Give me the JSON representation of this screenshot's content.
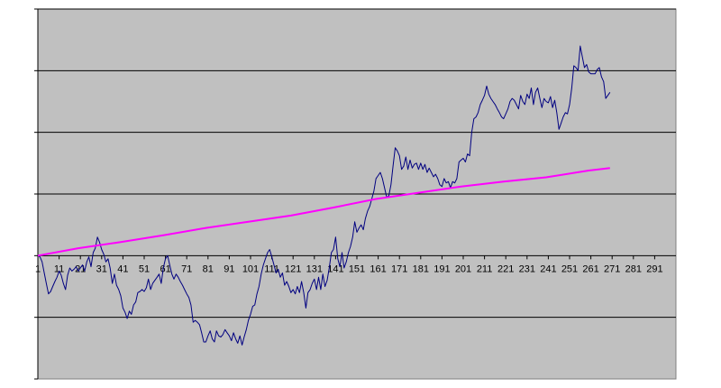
{
  "chart_data": {
    "type": "line",
    "title": "",
    "xlabel": "",
    "ylabel": "",
    "x_tick_labels": [
      "1",
      "11",
      "21",
      "31",
      "41",
      "51",
      "61",
      "71",
      "81",
      "91",
      "101",
      "111",
      "121",
      "131",
      "141",
      "151",
      "161",
      "171",
      "181",
      "191",
      "201",
      "211",
      "221",
      "231",
      "241",
      "251",
      "261",
      "271",
      "281",
      "291"
    ],
    "xlim": [
      1,
      301
    ],
    "ylim": [
      -2,
      4
    ],
    "y_gridlines": [
      -1,
      1,
      2,
      3,
      4
    ],
    "y_tick_labels_visible": false,
    "grid": true,
    "legend": "none",
    "plot_background": "#c0c0c0",
    "series": [
      {
        "color": "#000080",
        "points": [
          [
            1,
            0.0
          ],
          [
            2,
            -0.02
          ],
          [
            3,
            -0.1
          ],
          [
            4,
            -0.28
          ],
          [
            5,
            -0.45
          ],
          [
            6,
            -0.62
          ],
          [
            7,
            -0.58
          ],
          [
            8,
            -0.5
          ],
          [
            9,
            -0.42
          ],
          [
            10,
            -0.35
          ],
          [
            11,
            -0.25
          ],
          [
            12,
            -0.32
          ],
          [
            13,
            -0.45
          ],
          [
            14,
            -0.55
          ],
          [
            15,
            -0.32
          ],
          [
            16,
            -0.2
          ],
          [
            17,
            -0.25
          ],
          [
            18,
            -0.22
          ],
          [
            19,
            -0.18
          ],
          [
            20,
            -0.25
          ],
          [
            21,
            -0.2
          ],
          [
            22,
            -0.15
          ],
          [
            23,
            -0.25
          ],
          [
            24,
            -0.1
          ],
          [
            25,
            -0.02
          ],
          [
            26,
            -0.18
          ],
          [
            27,
            0.05
          ],
          [
            28,
            0.12
          ],
          [
            29,
            0.3
          ],
          [
            30,
            0.22
          ],
          [
            31,
            0.1
          ],
          [
            32,
            0.02
          ],
          [
            33,
            -0.1
          ],
          [
            34,
            -0.05
          ],
          [
            35,
            -0.2
          ],
          [
            36,
            -0.45
          ],
          [
            37,
            -0.3
          ],
          [
            38,
            -0.48
          ],
          [
            39,
            -0.55
          ],
          [
            40,
            -0.65
          ],
          [
            41,
            -0.85
          ],
          [
            42,
            -0.92
          ],
          [
            43,
            -1.02
          ],
          [
            44,
            -0.9
          ],
          [
            45,
            -0.95
          ],
          [
            46,
            -0.8
          ],
          [
            47,
            -0.75
          ],
          [
            48,
            -0.6
          ],
          [
            49,
            -0.58
          ],
          [
            50,
            -0.55
          ],
          [
            51,
            -0.58
          ],
          [
            52,
            -0.52
          ],
          [
            53,
            -0.38
          ],
          [
            54,
            -0.55
          ],
          [
            55,
            -0.45
          ],
          [
            56,
            -0.4
          ],
          [
            57,
            -0.35
          ],
          [
            58,
            -0.3
          ],
          [
            59,
            -0.45
          ],
          [
            60,
            -0.2
          ],
          [
            61,
            -0.05
          ],
          [
            62,
            0.0
          ],
          [
            63,
            -0.15
          ],
          [
            64,
            -0.3
          ],
          [
            65,
            -0.38
          ],
          [
            66,
            -0.3
          ],
          [
            67,
            -0.35
          ],
          [
            68,
            -0.42
          ],
          [
            69,
            -0.48
          ],
          [
            70,
            -0.55
          ],
          [
            71,
            -0.62
          ],
          [
            72,
            -0.68
          ],
          [
            73,
            -0.8
          ],
          [
            74,
            -1.08
          ],
          [
            75,
            -1.05
          ],
          [
            76,
            -1.08
          ],
          [
            77,
            -1.12
          ],
          [
            78,
            -1.25
          ],
          [
            79,
            -1.4
          ],
          [
            80,
            -1.4
          ],
          [
            81,
            -1.3
          ],
          [
            82,
            -1.22
          ],
          [
            83,
            -1.35
          ],
          [
            84,
            -1.4
          ],
          [
            85,
            -1.22
          ],
          [
            86,
            -1.3
          ],
          [
            87,
            -1.32
          ],
          [
            88,
            -1.28
          ],
          [
            89,
            -1.2
          ],
          [
            90,
            -1.25
          ],
          [
            91,
            -1.3
          ],
          [
            92,
            -1.38
          ],
          [
            93,
            -1.25
          ],
          [
            94,
            -1.35
          ],
          [
            95,
            -1.42
          ],
          [
            96,
            -1.3
          ],
          [
            97,
            -1.45
          ],
          [
            98,
            -1.32
          ],
          [
            99,
            -1.2
          ],
          [
            100,
            -1.05
          ],
          [
            101,
            -0.95
          ],
          [
            102,
            -0.82
          ],
          [
            103,
            -0.8
          ],
          [
            104,
            -0.62
          ],
          [
            105,
            -0.5
          ],
          [
            106,
            -0.3
          ],
          [
            107,
            -0.15
          ],
          [
            108,
            -0.05
          ],
          [
            109,
            0.05
          ],
          [
            110,
            0.1
          ],
          [
            111,
            -0.02
          ],
          [
            112,
            -0.15
          ],
          [
            113,
            -0.28
          ],
          [
            114,
            -0.22
          ],
          [
            115,
            -0.35
          ],
          [
            116,
            -0.28
          ],
          [
            117,
            -0.48
          ],
          [
            118,
            -0.42
          ],
          [
            119,
            -0.5
          ],
          [
            120,
            -0.6
          ],
          [
            121,
            -0.55
          ],
          [
            122,
            -0.62
          ],
          [
            123,
            -0.5
          ],
          [
            124,
            -0.6
          ],
          [
            125,
            -0.42
          ],
          [
            126,
            -0.6
          ],
          [
            127,
            -0.85
          ],
          [
            128,
            -0.6
          ],
          [
            129,
            -0.55
          ],
          [
            130,
            -0.45
          ],
          [
            131,
            -0.38
          ],
          [
            132,
            -0.55
          ],
          [
            133,
            -0.35
          ],
          [
            134,
            -0.55
          ],
          [
            135,
            -0.3
          ],
          [
            136,
            -0.5
          ],
          [
            137,
            -0.4
          ],
          [
            138,
            -0.2
          ],
          [
            139,
            0.05
          ],
          [
            140,
            0.1
          ],
          [
            141,
            0.3
          ],
          [
            142,
            -0.05
          ],
          [
            143,
            -0.18
          ],
          [
            144,
            0.05
          ],
          [
            145,
            -0.2
          ],
          [
            146,
            -0.1
          ],
          [
            147,
            0.05
          ],
          [
            148,
            0.15
          ],
          [
            149,
            0.3
          ],
          [
            150,
            0.55
          ],
          [
            151,
            0.38
          ],
          [
            152,
            0.45
          ],
          [
            153,
            0.5
          ],
          [
            154,
            0.42
          ],
          [
            155,
            0.6
          ],
          [
            156,
            0.72
          ],
          [
            157,
            0.8
          ],
          [
            158,
            0.92
          ],
          [
            159,
            1.05
          ],
          [
            160,
            1.25
          ],
          [
            161,
            1.3
          ],
          [
            162,
            1.35
          ],
          [
            163,
            1.25
          ],
          [
            164,
            1.1
          ],
          [
            165,
            0.95
          ],
          [
            166,
            0.97
          ],
          [
            167,
            1.15
          ],
          [
            168,
            1.45
          ],
          [
            169,
            1.75
          ],
          [
            170,
            1.7
          ],
          [
            171,
            1.62
          ],
          [
            172,
            1.4
          ],
          [
            173,
            1.45
          ],
          [
            174,
            1.6
          ],
          [
            175,
            1.4
          ],
          [
            176,
            1.55
          ],
          [
            177,
            1.42
          ],
          [
            178,
            1.48
          ],
          [
            179,
            1.5
          ],
          [
            180,
            1.4
          ],
          [
            181,
            1.5
          ],
          [
            182,
            1.4
          ],
          [
            183,
            1.48
          ],
          [
            184,
            1.35
          ],
          [
            185,
            1.42
          ],
          [
            186,
            1.35
          ],
          [
            187,
            1.28
          ],
          [
            188,
            1.32
          ],
          [
            189,
            1.25
          ],
          [
            190,
            1.15
          ],
          [
            191,
            1.12
          ],
          [
            192,
            1.25
          ],
          [
            193,
            1.18
          ],
          [
            194,
            1.2
          ],
          [
            195,
            1.1
          ],
          [
            196,
            1.2
          ],
          [
            197,
            1.18
          ],
          [
            198,
            1.25
          ],
          [
            199,
            1.52
          ],
          [
            200,
            1.55
          ],
          [
            201,
            1.58
          ],
          [
            202,
            1.52
          ],
          [
            203,
            1.65
          ],
          [
            204,
            1.62
          ],
          [
            205,
            2.0
          ],
          [
            206,
            2.22
          ],
          [
            207,
            2.25
          ],
          [
            208,
            2.32
          ],
          [
            209,
            2.45
          ],
          [
            210,
            2.52
          ],
          [
            211,
            2.6
          ],
          [
            212,
            2.75
          ],
          [
            213,
            2.62
          ],
          [
            214,
            2.55
          ],
          [
            215,
            2.5
          ],
          [
            216,
            2.45
          ],
          [
            217,
            2.38
          ],
          [
            218,
            2.32
          ],
          [
            219,
            2.25
          ],
          [
            220,
            2.22
          ],
          [
            221,
            2.3
          ],
          [
            222,
            2.38
          ],
          [
            223,
            2.5
          ],
          [
            224,
            2.55
          ],
          [
            225,
            2.52
          ],
          [
            226,
            2.45
          ],
          [
            227,
            2.38
          ],
          [
            228,
            2.6
          ],
          [
            229,
            2.5
          ],
          [
            230,
            2.45
          ],
          [
            231,
            2.62
          ],
          [
            232,
            2.55
          ],
          [
            233,
            2.72
          ],
          [
            234,
            2.45
          ],
          [
            235,
            2.65
          ],
          [
            236,
            2.72
          ],
          [
            237,
            2.55
          ],
          [
            238,
            2.4
          ],
          [
            239,
            2.55
          ],
          [
            240,
            2.5
          ],
          [
            241,
            2.48
          ],
          [
            242,
            2.58
          ],
          [
            243,
            2.4
          ],
          [
            244,
            2.52
          ],
          [
            245,
            2.32
          ],
          [
            246,
            2.05
          ],
          [
            247,
            2.15
          ],
          [
            248,
            2.25
          ],
          [
            249,
            2.32
          ],
          [
            250,
            2.3
          ],
          [
            251,
            2.45
          ],
          [
            252,
            2.72
          ],
          [
            253,
            3.08
          ],
          [
            254,
            3.05
          ],
          [
            255,
            3.0
          ],
          [
            256,
            3.4
          ],
          [
            257,
            3.22
          ],
          [
            258,
            3.05
          ],
          [
            259,
            3.1
          ],
          [
            260,
            2.98
          ],
          [
            261,
            2.95
          ],
          [
            262,
            2.95
          ],
          [
            263,
            2.95
          ],
          [
            264,
            3.02
          ],
          [
            265,
            3.05
          ],
          [
            266,
            2.9
          ],
          [
            267,
            2.82
          ],
          [
            268,
            2.55
          ],
          [
            269,
            2.6
          ],
          [
            270,
            2.65
          ]
        ]
      },
      {
        "color": "#ff00ff",
        "points": [
          [
            1,
            0.0
          ],
          [
            20,
            0.12
          ],
          [
            40,
            0.22
          ],
          [
            60,
            0.33
          ],
          [
            80,
            0.45
          ],
          [
            100,
            0.55
          ],
          [
            120,
            0.65
          ],
          [
            140,
            0.78
          ],
          [
            160,
            0.92
          ],
          [
            180,
            1.02
          ],
          [
            200,
            1.12
          ],
          [
            220,
            1.2
          ],
          [
            240,
            1.27
          ],
          [
            260,
            1.38
          ],
          [
            270,
            1.42
          ]
        ]
      }
    ]
  }
}
